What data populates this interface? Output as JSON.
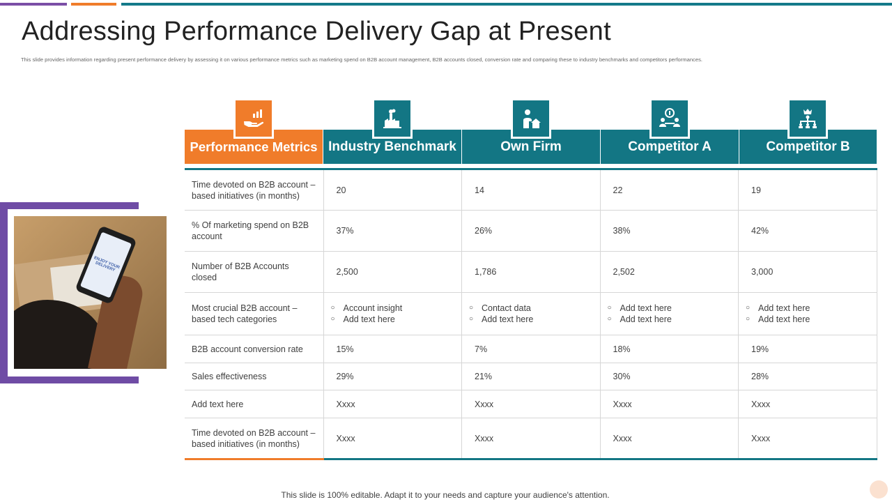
{
  "slide": {
    "title": "Addressing Performance Delivery Gap at Present",
    "subtitle": "This slide provides information regarding present performance delivery by assessing it on various performance metrics such as marketing spend on B2B account management, B2B accounts closed, conversion rate  and comparing these to industry benchmarks and competitors performances.",
    "footer": "This slide is 100% editable. Adapt it to your needs and capture your audience's attention."
  },
  "photo": {
    "screen_text": "ENJOY YOUR DELIVERY"
  },
  "colors": {
    "orange": "#f07c2a",
    "teal": "#137684",
    "purple": "#6f4ca5"
  },
  "table": {
    "headers": [
      {
        "label": "Performance Metrics",
        "icon": "hand-chart-icon"
      },
      {
        "label": "Industry Benchmark",
        "icon": "factory-icon"
      },
      {
        "label": "Own Firm",
        "icon": "person-home-icon"
      },
      {
        "label": "Competitor A",
        "icon": "meeting-icon"
      },
      {
        "label": "Competitor B",
        "icon": "hierarchy-crown-icon"
      }
    ],
    "rows": [
      {
        "metric": "Time devoted  on B2B account – based initiatives (in months)",
        "values": [
          "20",
          "14",
          "22",
          "19"
        ]
      },
      {
        "metric": "% Of marketing spend on B2B account",
        "values": [
          "37%",
          "26%",
          "38%",
          "42%"
        ]
      },
      {
        "metric": "Number of B2B Accounts closed",
        "values": [
          "2,500",
          "1,786",
          "2,502",
          "3,000"
        ]
      },
      {
        "metric": "Most crucial B2B account – based tech categories",
        "bullets": [
          [
            "Account insight",
            "Add text here"
          ],
          [
            "Contact data",
            "Add text here"
          ],
          [
            "Add text here",
            "Add text here"
          ],
          [
            "Add text here",
            "Add text here"
          ]
        ]
      },
      {
        "metric": "B2B account conversion rate",
        "values": [
          "15%",
          "7%",
          "18%",
          "19%"
        ]
      },
      {
        "metric": "Sales effectiveness",
        "values": [
          "29%",
          "21%",
          "30%",
          "28%"
        ]
      },
      {
        "metric": "Add text here",
        "values": [
          "Xxxx",
          "Xxxx",
          "Xxxx",
          "Xxxx"
        ]
      },
      {
        "metric": "Time devoted  on B2B account – based initiatives (in months)",
        "values": [
          "Xxxx",
          "Xxxx",
          "Xxxx",
          "Xxxx"
        ]
      }
    ]
  }
}
